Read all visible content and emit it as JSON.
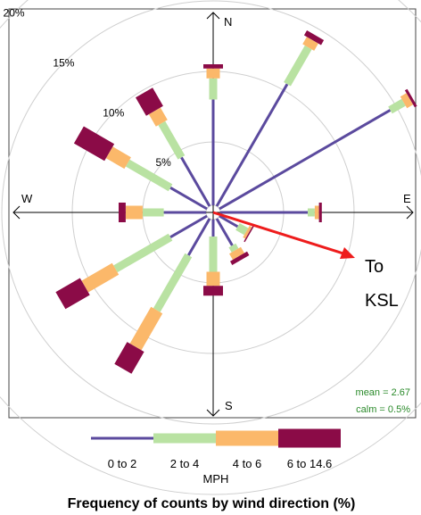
{
  "chart_data": {
    "type": "windrose",
    "title": "Frequency of counts by wind direction (%)",
    "rings": [
      {
        "value": 5,
        "label": "5%"
      },
      {
        "value": 10,
        "label": "10%"
      },
      {
        "value": 15,
        "label": "15%"
      },
      {
        "value": 20,
        "label": "20%"
      }
    ],
    "compass": {
      "n": "N",
      "e": "E",
      "s": "S",
      "w": "W"
    },
    "bins": [
      {
        "name": "0 to 2",
        "color": "#5b4a9e"
      },
      {
        "name": "2 to 4",
        "color": "#b9e2a2"
      },
      {
        "name": "4 to 6",
        "color": "#fbb86a"
      },
      {
        "name": "6 to 14.6",
        "color": "#8b0b47"
      }
    ],
    "legend_unit": "MPH",
    "directions": [
      {
        "dir": 0,
        "values": [
          7.5,
          1.5,
          0.7,
          0.3
        ]
      },
      {
        "dir": 30,
        "values": [
          10.0,
          3.0,
          0.6,
          0.4
        ]
      },
      {
        "dir": 60,
        "values": [
          14.0,
          1.1,
          0.5,
          0.2
        ]
      },
      {
        "dir": 90,
        "values": [
          6.2,
          0.5,
          0.3,
          0.2
        ]
      },
      {
        "dir": 120,
        "values": [
          1.5,
          0.7,
          0.2,
          0.1
        ]
      },
      {
        "dir": 150,
        "values": [
          2.2,
          0.4,
          0.5,
          0.3
        ]
      },
      {
        "dir": 180,
        "values": [
          1.2,
          2.5,
          1.0,
          0.7
        ]
      },
      {
        "dir": 210,
        "values": [
          3.0,
          4.5,
          3.0,
          1.8
        ]
      },
      {
        "dir": 240,
        "values": [
          3.0,
          4.5,
          2.5,
          2.0
        ]
      },
      {
        "dir": 270,
        "values": [
          3.0,
          1.5,
          1.2,
          0.5
        ]
      },
      {
        "dir": 300,
        "values": [
          3.0,
          3.5,
          1.5,
          2.5
        ]
      },
      {
        "dir": 330,
        "values": [
          4.0,
          2.8,
          1.0,
          1.5
        ]
      }
    ],
    "stats": {
      "mean": "mean = 2.67",
      "calm": "calm = 0.5%"
    },
    "annotation": {
      "line1": "To",
      "line2": "KSL",
      "arrow_color": "#ee1c1c"
    }
  }
}
